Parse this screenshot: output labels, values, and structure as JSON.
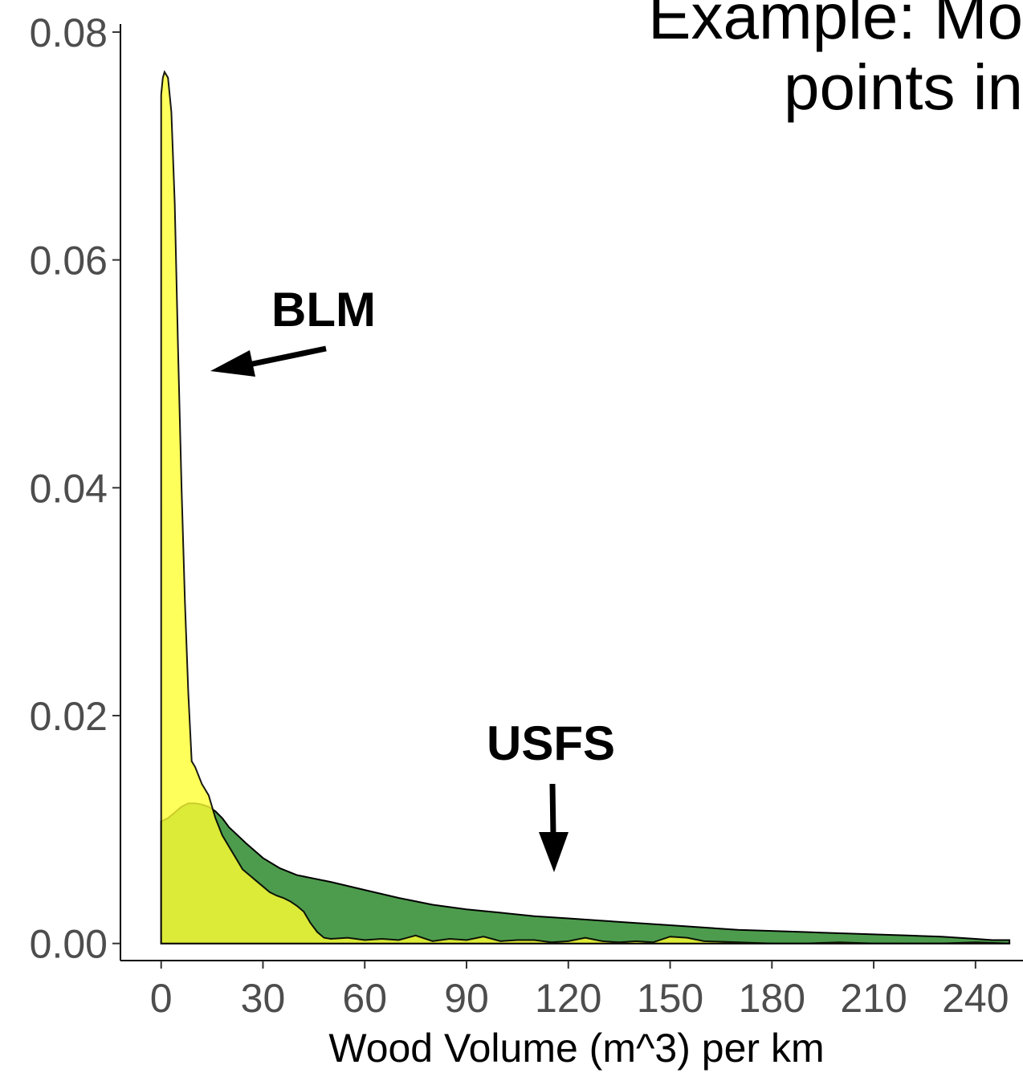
{
  "slide": {
    "title_line1": "Example: Mo",
    "title_line2": "points in"
  },
  "chart_data": {
    "type": "area",
    "xlabel": "Wood Volume (m^3) per km",
    "ylabel": "",
    "xlim": [
      -12,
      254
    ],
    "ylim": [
      -0.0015,
      0.0807
    ],
    "x_ticks": [
      "0",
      "30",
      "60",
      "90",
      "120",
      "150",
      "180",
      "210",
      "240"
    ],
    "y_ticks": [
      "0.00",
      "0.02",
      "0.04",
      "0.06",
      "0.08"
    ],
    "x_tick_values": [
      0,
      30,
      60,
      90,
      120,
      150,
      180,
      210,
      240
    ],
    "y_tick_values": [
      0,
      0.02,
      0.04,
      0.06,
      0.08
    ],
    "grid": false,
    "series": [
      {
        "name": "BLM",
        "color": "#ffff33",
        "x": [
          0,
          0.5,
          1,
          2,
          3,
          4,
          5,
          6,
          7,
          8,
          9,
          10,
          12,
          14,
          16,
          18,
          20,
          22,
          24,
          26,
          28,
          30,
          32,
          34,
          36,
          38,
          40,
          42,
          44,
          46,
          48,
          50,
          55,
          60,
          65,
          70,
          75,
          80,
          85,
          90,
          95,
          100,
          105,
          110,
          115,
          120,
          125,
          130,
          135,
          140,
          145,
          150,
          155,
          160,
          170,
          180,
          190,
          200,
          210,
          220,
          230,
          240,
          250
        ],
        "y": [
          0.0745,
          0.076,
          0.0765,
          0.076,
          0.073,
          0.065,
          0.052,
          0.04,
          0.03,
          0.022,
          0.016,
          0.0155,
          0.014,
          0.013,
          0.011,
          0.0095,
          0.0085,
          0.0075,
          0.0065,
          0.006,
          0.0055,
          0.005,
          0.0045,
          0.0042,
          0.004,
          0.0037,
          0.0033,
          0.0028,
          0.0018,
          0.001,
          0.0005,
          0.0004,
          0.0005,
          0.0003,
          0.0004,
          0.0003,
          0.0007,
          0.0002,
          0.0004,
          0.0003,
          0.0006,
          0.0002,
          0.0003,
          0.0003,
          0.0001,
          0.0002,
          0.0005,
          0.0002,
          0.0001,
          0.0002,
          0.0001,
          0.0006,
          0.0005,
          0.0002,
          0.0001,
          0.0,
          0.0,
          0.0001,
          0.0,
          0.0,
          0.0,
          0.0001,
          0.0
        ]
      },
      {
        "name": "USFS",
        "color": "#2e8b2e",
        "x": [
          0,
          2,
          4,
          6,
          8,
          10,
          12,
          14,
          16,
          18,
          20,
          25,
          30,
          35,
          40,
          50,
          60,
          70,
          80,
          90,
          100,
          110,
          120,
          130,
          140,
          150,
          160,
          170,
          180,
          190,
          200,
          210,
          220,
          230,
          235,
          240,
          245,
          250
        ],
        "y": [
          0.0107,
          0.011,
          0.0115,
          0.012,
          0.0123,
          0.0123,
          0.0122,
          0.012,
          0.0116,
          0.011,
          0.0102,
          0.0088,
          0.0075,
          0.0066,
          0.006,
          0.0054,
          0.0047,
          0.004,
          0.0034,
          0.003,
          0.0027,
          0.0024,
          0.0022,
          0.002,
          0.0018,
          0.0016,
          0.0014,
          0.0012,
          0.0011,
          0.001,
          0.0009,
          0.0008,
          0.0007,
          0.0006,
          0.0005,
          0.0004,
          0.0003,
          0.0003
        ]
      }
    ],
    "annotations": [
      {
        "text": "BLM"
      },
      {
        "text": "USFS"
      }
    ]
  }
}
